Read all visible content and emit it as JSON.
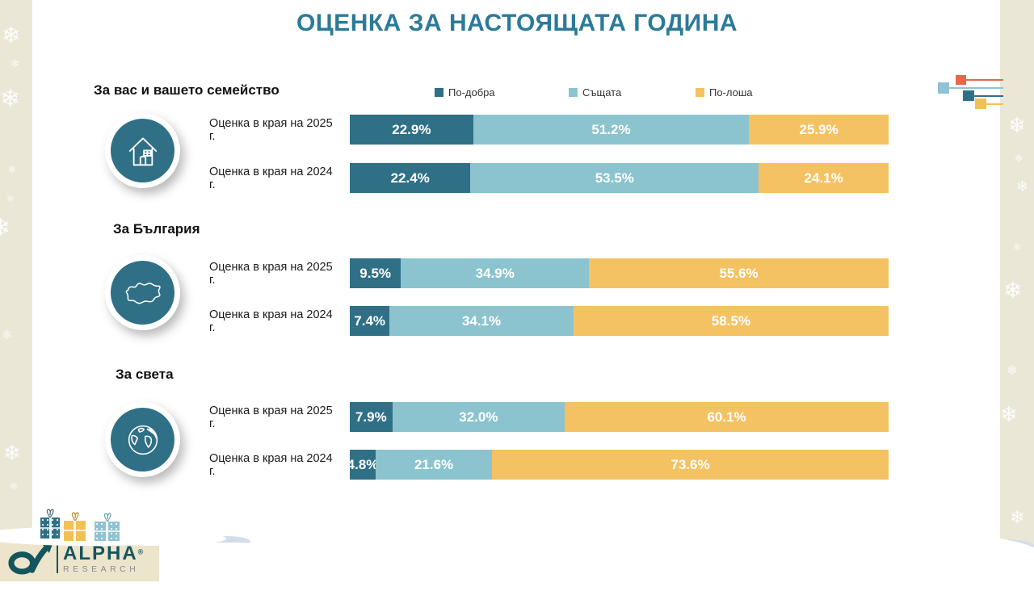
{
  "page": {
    "title": "ОЦЕНКА ЗА НАСТОЯЩАТА ГОДИНА"
  },
  "legend": {
    "items": [
      {
        "label": "По-добра",
        "color": "#2F7086"
      },
      {
        "label": "Същата",
        "color": "#8BC4CE"
      },
      {
        "label": "По-лоша",
        "color": "#F4C262"
      }
    ]
  },
  "sections": [
    {
      "heading": "За вас и вашето семейство",
      "icon": "house-icon",
      "rows": [
        {
          "label": "Оценка в края на 2025 г.",
          "values": [
            22.9,
            51.2,
            25.9
          ],
          "display": [
            "22.9%",
            "51.2%",
            "25.9%"
          ]
        },
        {
          "label": "Оценка в края на 2024 г.",
          "values": [
            22.4,
            53.5,
            24.1
          ],
          "display": [
            "22.4%",
            "53.5%",
            "24.1%"
          ]
        }
      ]
    },
    {
      "heading": "За България",
      "icon": "bulgaria-map-icon",
      "rows": [
        {
          "label": "Оценка в края на 2025 г.",
          "values": [
            9.5,
            34.9,
            55.6
          ],
          "display": [
            "9.5%",
            "34.9%",
            "55.6%"
          ]
        },
        {
          "label": "Оценка в края на 2024 г.",
          "values": [
            7.4,
            34.1,
            58.5
          ],
          "display": [
            "7.4%",
            "34.1%",
            "58.5%"
          ]
        }
      ]
    },
    {
      "heading": "За света",
      "icon": "globe-icon",
      "rows": [
        {
          "label": "Оценка в края на 2025 г.",
          "values": [
            7.9,
            32.0,
            60.1
          ],
          "display": [
            "7.9%",
            "32.0%",
            "60.1%"
          ]
        },
        {
          "label": "Оценка в края на 2024 г.",
          "values": [
            4.8,
            21.6,
            73.6
          ],
          "display": [
            "4.8%",
            "21.6%",
            "73.6%"
          ]
        }
      ]
    }
  ],
  "logo": {
    "brand": "ALPHA",
    "registered": "®",
    "subbrand": "RESEARCH"
  },
  "decor": {
    "snowflake_glyph": "❄"
  },
  "colors": {
    "title": "#2C7A99",
    "better": "#2F7086",
    "same": "#8BC4CE",
    "worse": "#F4C262",
    "background_strip": "#EAE7D7",
    "logo_box": "#EDE4CC",
    "logo_teal": "#14555E",
    "logo_gray": "#8A8A8A",
    "snow_shadow": "#D2DDE9",
    "motif_red": "#E8684A"
  },
  "chart_data": {
    "type": "bar",
    "orientation": "horizontal",
    "stacked": true,
    "title": "ОЦЕНКА ЗА НАСТОЯЩАТА ГОДИНА",
    "unit": "%",
    "xlim": [
      0,
      100
    ],
    "grid": false,
    "legend_position": "top",
    "series_names": [
      "По-добра",
      "Същата",
      "По-лоша"
    ],
    "series_colors": [
      "#2F7086",
      "#8BC4CE",
      "#F4C262"
    ],
    "groups": [
      {
        "name": "За вас и вашето семейство",
        "bars": [
          {
            "label": "Оценка в края на 2025 г.",
            "values": [
              22.9,
              51.2,
              25.9
            ]
          },
          {
            "label": "Оценка в края на 2024 г.",
            "values": [
              22.4,
              53.5,
              24.1
            ]
          }
        ]
      },
      {
        "name": "За България",
        "bars": [
          {
            "label": "Оценка в края на 2025 г.",
            "values": [
              9.5,
              34.9,
              55.6
            ]
          },
          {
            "label": "Оценка в края на 2024 г.",
            "values": [
              7.4,
              34.1,
              58.5
            ]
          }
        ]
      },
      {
        "name": "За света",
        "bars": [
          {
            "label": "Оценка в края на 2025 г.",
            "values": [
              7.9,
              32.0,
              60.1
            ]
          },
          {
            "label": "Оценка в края на 2024 г.",
            "values": [
              4.8,
              21.6,
              73.6
            ]
          }
        ]
      }
    ]
  }
}
